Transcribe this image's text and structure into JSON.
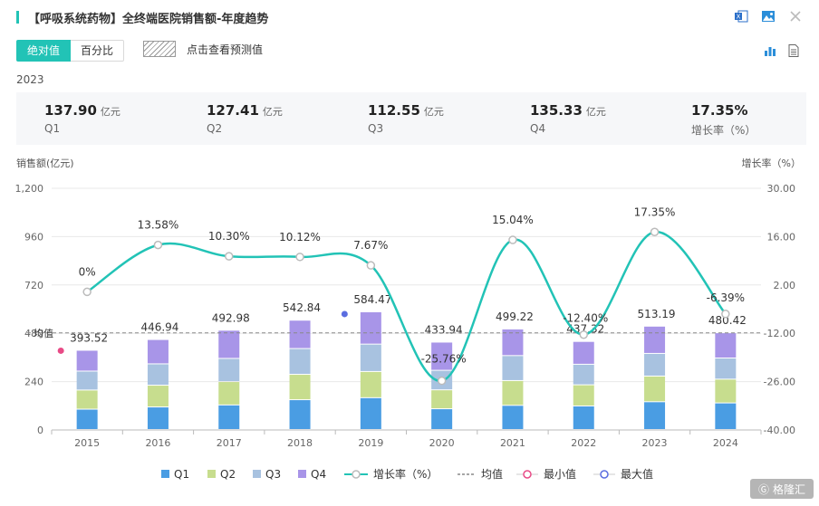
{
  "header": {
    "title": "【呼吸系统药物】全终端医院销售额-年度趋势"
  },
  "icons": [
    "excel-icon",
    "image-icon",
    "close-icon",
    "bar-chart-icon",
    "document-icon"
  ],
  "toggle": {
    "absolute_label": "绝对值",
    "percent_label": "百分比"
  },
  "forecast_label": "点击查看预测值",
  "year": "2023",
  "summary": [
    {
      "value": "137.90",
      "unit": "亿元",
      "name": "Q1"
    },
    {
      "value": "127.41",
      "unit": "亿元",
      "name": "Q2"
    },
    {
      "value": "112.55",
      "unit": "亿元",
      "name": "Q3"
    },
    {
      "value": "135.33",
      "unit": "亿元",
      "name": "Q4"
    },
    {
      "value": "17.35%",
      "unit": "",
      "name": "增长率（%）"
    }
  ],
  "watermark": "格隆汇",
  "colors": {
    "q1": "#4a9de3",
    "q2": "#c7dd8e",
    "q3": "#a8c2e0",
    "q4": "#a895e8",
    "line": "#22c3b6",
    "accent": "#22c3b6",
    "min": "#e84a86",
    "max": "#5b6de0"
  },
  "chart_data": {
    "type": "bar",
    "ylabel": "销售额(亿元)",
    "y2label": "增长率（%）",
    "categories": [
      "2015",
      "2016",
      "2017",
      "2018",
      "2019",
      "2020",
      "2021",
      "2022",
      "2023",
      "2024"
    ],
    "series": [
      {
        "name": "Q1",
        "values": [
          101,
          112,
          122,
          148,
          158,
          103,
          120,
          117,
          137.9,
          132
        ]
      },
      {
        "name": "Q2",
        "values": [
          95,
          108,
          116,
          126,
          130,
          94,
          123,
          105,
          127.41,
          118
        ]
      },
      {
        "name": "Q3",
        "values": [
          94,
          106,
          115,
          128,
          136,
          97,
          124,
          102,
          112.55,
          105
        ]
      },
      {
        "name": "Q4",
        "values": [
          103.52,
          120.94,
          139.98,
          140.84,
          160.47,
          139.94,
          132.22,
          113.32,
          135.33,
          125.42
        ]
      }
    ],
    "totals": [
      "393.52",
      "446.94",
      "492.98",
      "542.84",
      "584.47",
      "433.94",
      "499.22",
      "437.32",
      "513.19",
      "480.42"
    ],
    "growth": {
      "name": "增长率（%）",
      "values": [
        0,
        13.58,
        10.3,
        10.12,
        7.67,
        -25.76,
        15.04,
        -12.4,
        17.35,
        -6.39
      ],
      "labels": [
        "0%",
        "13.58%",
        "10.30%",
        "10.12%",
        "7.67%",
        "-25.76%",
        "15.04%",
        "-12.40%",
        "17.35%",
        "-6.39%"
      ]
    },
    "ylim": [
      0,
      1200
    ],
    "yticks": [
      "0",
      "240",
      "480",
      "720",
      "960",
      "1,200"
    ],
    "y2lim": [
      -40,
      30
    ],
    "y2ticks": [
      "-40.00",
      "-26.00",
      "-12.00",
      "2.00",
      "16.00",
      "30.00"
    ],
    "mean_label": "均值",
    "mean_value": 482,
    "min_index": 0,
    "max_index": 4,
    "legend": [
      "Q1",
      "Q2",
      "Q3",
      "Q4",
      "增长率（%）",
      "均值",
      "最小值",
      "最大值"
    ]
  }
}
